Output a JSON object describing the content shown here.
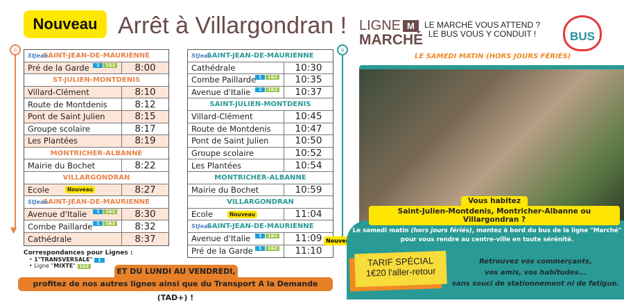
{
  "header": {
    "badge": "Nouveau",
    "title": "Arrêt à Villargondran !"
  },
  "brand": {
    "ligne": "LIGNE",
    "m": "M",
    "marche": "MARCHÉ",
    "slogan1": "LE MARCHÉ VOUS ATTEND ?",
    "slogan2": "LE BUS VOUS Y CONDUIT !",
    "bus_logo": "BUS",
    "schedule_note": "LE SAMEDI MATIN (HORS JOURS FÉRIÉS)"
  },
  "tags": {
    "l1": "1",
    "l2": "1&2",
    "new": "Nouveau",
    "logo": "StJean"
  },
  "outbound": [
    {
      "type": "sec",
      "label": "SAINT-JEAN-DE-MAURIENNE",
      "logo": true
    },
    {
      "stop": "Pré de la Garde",
      "time": "8:00",
      "shade": true,
      "tags": true
    },
    {
      "type": "sec",
      "label": "ST-JULIEN-MONTDENIS"
    },
    {
      "stop": "Villard-Clément",
      "time": "8:10",
      "shade": true
    },
    {
      "stop": "Route de Montdenis",
      "time": "8:12"
    },
    {
      "stop": "Pont de Saint Julien",
      "time": "8:15",
      "shade": true
    },
    {
      "stop": "Groupe scolaire",
      "time": "8:17"
    },
    {
      "stop": "Les Plantées",
      "time": "8:19",
      "shade": true
    },
    {
      "type": "sec",
      "label": "MONTRICHER-ALBANNE"
    },
    {
      "stop": "Mairie du Bochet",
      "time": "8:22"
    },
    {
      "type": "sec",
      "label": "VILLARGONDRAN"
    },
    {
      "stop": "Ecole",
      "time": "8:27",
      "shade": true,
      "new": true
    },
    {
      "type": "sec",
      "label": "SAINT-JEAN-DE-MAURIENNE",
      "logo": true
    },
    {
      "stop": "Avenue d'Italie",
      "time": "8:30",
      "shade": true,
      "tags": true
    },
    {
      "stop": "Combe Paillarde",
      "time": "8:32",
      "tags": true
    },
    {
      "stop": "Cathédrale",
      "time": "8:37",
      "shade": true
    }
  ],
  "return": [
    {
      "type": "sec",
      "label": "SAINT-JEAN-DE-MAURIENNE",
      "logo": true
    },
    {
      "stop": "Cathédrale",
      "time": "10:30"
    },
    {
      "stop": "Combe Paillarde",
      "time": "10:35",
      "tags": true
    },
    {
      "stop": "Avenue d'Italie",
      "time": "10:37",
      "tags": true
    },
    {
      "type": "sec",
      "label": "SAINT-JULIEN-MONTDENIS"
    },
    {
      "stop": "Villard-Clément",
      "time": "10:45"
    },
    {
      "stop": "Route de Montdenis",
      "time": "10:47"
    },
    {
      "stop": "Pont de Saint Julien",
      "time": "10:50"
    },
    {
      "stop": "Groupe scolaire",
      "time": "10:52"
    },
    {
      "stop": "Les Plantées",
      "time": "10:54"
    },
    {
      "type": "sec",
      "label": "MONTRICHER-ALBANNE"
    },
    {
      "stop": "Mairie du Bochet",
      "time": "10:59"
    },
    {
      "type": "sec",
      "label": "VILLARGONDRAN"
    },
    {
      "stop": "Ecole",
      "time": "11:04",
      "new": true
    },
    {
      "type": "sec",
      "label": "SAINT-JEAN-DE-MAURIENNE",
      "logo": true
    },
    {
      "stop": "Avenue d'Italie",
      "time": "11:09",
      "tags": true
    },
    {
      "stop": "Pré de la Garde",
      "time": "11:10",
      "tags": true
    }
  ],
  "return_new_flag": "Nouveau",
  "correspondances": {
    "title": "Correspondances pour Lignes :",
    "item1": "1\"TRANSVERSALE\"",
    "item2_pre": "Ligne \"",
    "item2_bold": "MIXTE",
    "item2_post": "\""
  },
  "weekday": {
    "line1": "ET DU LUNDI AU VENDREDI,",
    "line2": "profitez de nos autres lignes ainsi que du Transport A la Demande (TAD+) !"
  },
  "promo": {
    "q1": "Vous habitez",
    "q2": "Saint-Julien-Montdenis, Montricher-Albanne ou Villargondran ?",
    "p1a": "Le samedi matin ",
    "p1b": "(hors jours fériés)",
    "p1c": ", montez à bord du bus de la ligne \"Marché\"",
    "p2": "pour vous rendre au centre-ville en toute sérénité.",
    "tarif1": "TARIF SPÉCIAL",
    "tarif2": "1€20 l'aller-retour",
    "r1": "Retrouvez vos commerçants,",
    "r2": "vos amis, vos habitudes...",
    "r3": "sans souci de stationnement ni de fatigue."
  },
  "colors": {
    "orange": "#e8844a",
    "teal": "#2a9a96",
    "yellow": "#ffe600",
    "brown": "#6b4a4a"
  }
}
